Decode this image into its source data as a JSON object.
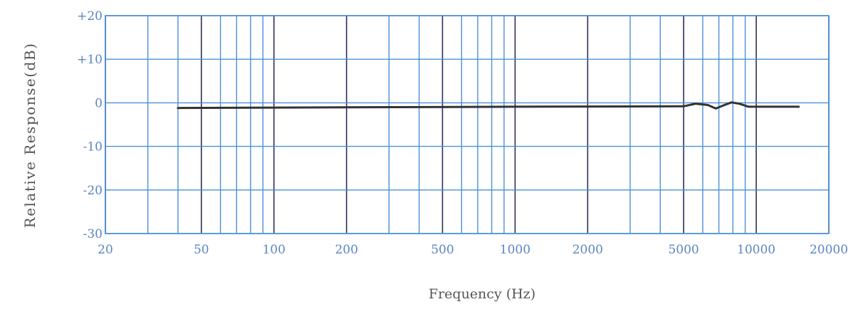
{
  "chart_data": {
    "type": "line",
    "xlabel": "Frequency (Hz)",
    "ylabel": "Relative Response(dB)",
    "x_scale": "log",
    "xlim": [
      20,
      20000
    ],
    "ylim": [
      -30,
      20
    ],
    "x_ticks": [
      20,
      50,
      100,
      200,
      500,
      1000,
      2000,
      5000,
      10000,
      20000
    ],
    "x_tick_labels": [
      "20",
      "50",
      "100",
      "200",
      "500",
      "1000",
      "2000",
      "5000",
      "10000",
      "20000"
    ],
    "y_ticks": [
      20,
      10,
      0,
      -10,
      -20,
      -30
    ],
    "y_tick_labels": [
      "+20",
      "+10",
      "0",
      "-10",
      "-20",
      "-30"
    ],
    "grid": true,
    "series": [
      {
        "x": [
          40,
          100,
          1000,
          5000,
          5600,
          6300,
          6800,
          7300,
          7900,
          8500,
          9300,
          10000,
          15000
        ],
        "y": [
          -1.2,
          -1.1,
          -0.9,
          -0.8,
          -0.2,
          -0.5,
          -1.3,
          -0.6,
          0.1,
          -0.2,
          -0.9,
          -0.9,
          -0.9
        ]
      }
    ],
    "colors": {
      "grid_major": "#2d2d55",
      "grid_minor": "#4a90d9",
      "line": "#333333",
      "tick_label": "#5b84c4",
      "axis_label": "#555555"
    }
  }
}
